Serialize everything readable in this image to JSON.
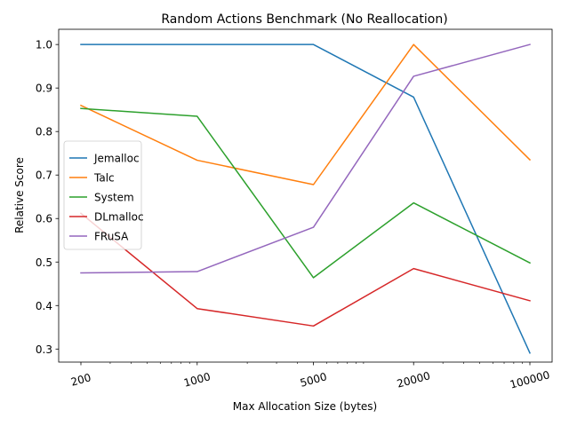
{
  "chart_data": {
    "type": "line",
    "title": "Random Actions Benchmark (No Reallocation)",
    "xlabel": "Max Allocation Size (bytes)",
    "ylabel": "Relative Score",
    "x_scale": "log",
    "x": [
      200,
      1000,
      5000,
      20000,
      100000
    ],
    "x_tick_labels": [
      "200",
      "1000",
      "5000",
      "20000",
      "100000"
    ],
    "ylim": [
      0.27,
      1.035
    ],
    "y_ticks": [
      0.3,
      0.4,
      0.5,
      0.6,
      0.7,
      0.8,
      0.9,
      1.0
    ],
    "y_tick_labels": [
      "0.3",
      "0.4",
      "0.5",
      "0.6",
      "0.7",
      "0.8",
      "0.9",
      "1.0"
    ],
    "grid": false,
    "legend_position": "center-left",
    "series": [
      {
        "name": "Jemalloc",
        "color": "#1f77b4",
        "values": [
          1.0,
          1.0,
          1.0,
          0.879,
          0.291
        ]
      },
      {
        "name": "Talc",
        "color": "#ff7f0e",
        "values": [
          0.86,
          0.734,
          0.678,
          1.0,
          0.735
        ]
      },
      {
        "name": "System",
        "color": "#2ca02c",
        "values": [
          0.853,
          0.835,
          0.464,
          0.636,
          0.498
        ]
      },
      {
        "name": "DLmalloc",
        "color": "#d62728",
        "values": [
          0.612,
          0.393,
          0.353,
          0.485,
          0.411
        ]
      },
      {
        "name": "FRuSA",
        "color": "#9467bd",
        "values": [
          0.475,
          0.478,
          0.58,
          0.927,
          1.0
        ]
      }
    ]
  }
}
